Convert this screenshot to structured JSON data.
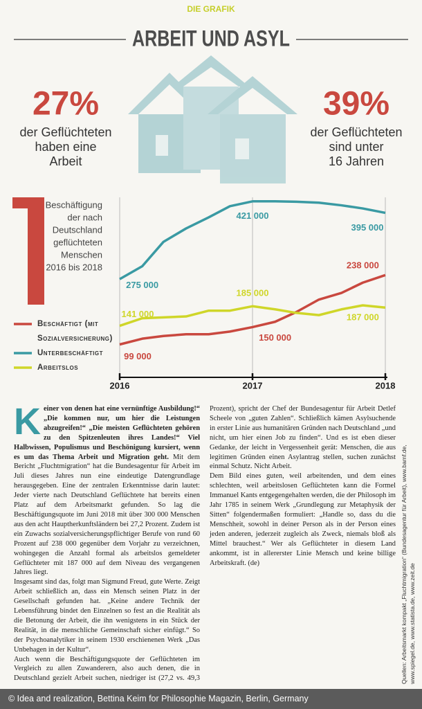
{
  "header": {
    "kicker": "DIE GRAFIK",
    "title": "ARBEIT UND ASYL"
  },
  "stats": [
    {
      "figure": "27%",
      "lines": [
        "der Geflüchteten",
        "haben eine",
        "Arbeit"
      ]
    },
    {
      "figure": "39%",
      "lines": [
        "der Geflüchteten",
        "sind unter",
        "16 Jahren"
      ]
    }
  ],
  "chart_data": {
    "type": "line",
    "title_lines": [
      "Beschäftigung",
      "der nach",
      "Deutschland",
      "geflüchteten",
      "Menschen",
      "2016 bis 2018"
    ],
    "x": [
      2016,
      2016.17,
      2016.33,
      2016.5,
      2016.67,
      2016.83,
      2017,
      2017.17,
      2017.33,
      2017.5,
      2017.67,
      2017.83,
      2018
    ],
    "xlim": [
      2016,
      2018
    ],
    "xticks": [
      2016,
      2017,
      2018
    ],
    "ylim": [
      25000,
      430000
    ],
    "grid": true,
    "legend": "lower-left",
    "series": [
      {
        "name": "Beschäftigt (mit Sozialversicherung)",
        "color": "#c9483f",
        "values": [
          99000,
          112000,
          118000,
          122000,
          122000,
          128000,
          138000,
          150000,
          172000,
          200000,
          215000,
          238000,
          255000
        ],
        "value_labels": [
          "99 000",
          null,
          null,
          null,
          null,
          null,
          null,
          "150 000",
          null,
          null,
          null,
          "238 000",
          null
        ]
      },
      {
        "name": "Unterbeschäftigt",
        "color": "#3a9aa3",
        "values": [
          246000,
          275000,
          330000,
          360000,
          385000,
          410000,
          421000,
          421000,
          420000,
          418000,
          412000,
          405000,
          395000
        ],
        "value_labels": [
          null,
          "275 000",
          null,
          null,
          null,
          null,
          "421 000",
          null,
          null,
          null,
          null,
          null,
          "395 000"
        ]
      },
      {
        "name": "Arbeitslos",
        "color": "#cfd629",
        "values": [
          141000,
          158000,
          160000,
          162000,
          175000,
          175000,
          185000,
          178000,
          170000,
          165000,
          178000,
          187000,
          182000
        ],
        "value_labels": [
          "141 000",
          null,
          null,
          null,
          null,
          null,
          "185 000",
          null,
          null,
          null,
          null,
          "187 000",
          null
        ]
      }
    ]
  },
  "article": {
    "lead": "Keiner von denen hat eine vernünftige Ausbildung!“ „Die kommen nur, um hier die Leistungen abzugreifen!“ „Die meisten Geflüchteten gehören zu den Spitzenleuten ihres Landes!“ Viel Halbwissen, Populismus und Beschönigung kursiert, wenn es um das Thema Arbeit und Migration geht.",
    "paragraphs": [
      "Mit dem Bericht „Fluchtmigration“ hat die Bundesagentur für Arbeit im Juli dieses Jahres nun eine eindeutige Datengrundlage herausgegeben. Eine der zentralen Erkenntnisse darin lautet: Jeder vierte nach Deutschland Geflüchtete hat bereits einen Platz auf dem Arbeitsmarkt gefunden. So lag die Beschäftigungsquote im Juni 2018 mit über 300 000 Menschen aus den acht Hauptherkunftsländern bei 27,2 Prozent. Zudem ist ein Zuwachs sozialversicherungspflichtiger Berufe von rund 60 Prozent auf 238 000 gegenüber dem Vorjahr zu verzeichnen, wohingegen die Anzahl formal als arbeitslos gemeldeter Geflüchteter mit 187 000 auf dem Niveau des vergangenen Jahres liegt.",
      "Insgesamt sind das, folgt man Sigmund Freud, gute Werte. Zeigt Arbeit schließlich an, dass ein Mensch seinen Platz in der Gesellschaft gefunden hat. „Keine andere Technik der Lebensführung bindet den Einzelnen so fest an die Realität als die Betonung der Arbeit, die ihn wenigstens in ein Stück der Realität, in die menschliche Gemeinschaft sicher einfügt.“ So der Psychoanalytiker in seinem 1930 erschienenen Werk „Das Unbehagen in der Kultur“.",
      "Auch wenn die Beschäftigungsquote der Geflüchteten im Vergleich zu allen Zuwanderern, also auch denen, die in Deutschland gezielt Arbeit suchen, niedriger ist (27,2 vs. 49,3 Prozent), spricht der Chef der Bundesagentur für Arbeit Detlef Scheele von „guten Zahlen“. Schließlich kämen Asylsuchende in erster Linie aus humanitären Gründen nach Deutschland „und nicht, um hier einen Job zu finden“. Und es ist eben dieser Gedanke, der leicht in Vergessenheit gerät: Menschen, die aus legitimen Gründen einen Asylantrag stellen, suchen zunächst einmal Schutz. Nicht Arbeit.",
      "Dem Bild eines guten, weil arbeitenden, und dem eines schlechten, weil arbeitslosen Geflüchteten kann die Formel Immanuel Kants entgegengehalten werden, die der Philosoph im Jahr 1785 in seinem Werk „Grundlegung zur Metaphysik der Sitten“ folgendermaßen formuliert: „Handle so, dass du die Menschheit, sowohl in deiner Person als in der Person eines jeden anderen, jederzeit zugleich als Zweck, niemals bloß als Mittel brauchest.“ Wer als Geflüchteter in diesem Land ankommt, ist in allererster Linie Mensch und keine billige Arbeitskraft. (de)"
    ]
  },
  "sources": "Quellen: Arbeitsmarkt kompakt „Fluchtmigration“ (Bundesagentur für Arbeit), www.bamf.de, www.spiegel.de, www.statista.de, www.zeit.de",
  "footer": "© Idea and realization, Bettina Keim for Philosophie Magazin, Berlin, Germany"
}
